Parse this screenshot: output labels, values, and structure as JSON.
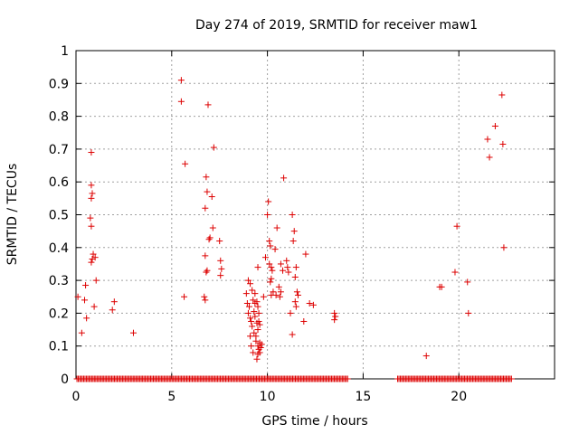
{
  "chart_data": {
    "type": "scatter",
    "title": "Day 274 of 2019, SRMTID for receiver maw1",
    "xlabel": "GPS time / hours",
    "ylabel": "SRMTID / TECUs",
    "xlim": [
      0,
      25
    ],
    "ylim": [
      0,
      1
    ],
    "xticks": [
      0,
      5,
      10,
      15,
      20
    ],
    "xtick_labels": [
      "0",
      "5",
      "10",
      "15",
      "20"
    ],
    "yticks": [
      0,
      0.1,
      0.2,
      0.3,
      0.4,
      0.5,
      0.6,
      0.7,
      0.8,
      0.9,
      1
    ],
    "ytick_labels": [
      "0",
      "0.1",
      "0.2",
      "0.3",
      "0.4",
      "0.5",
      "0.6",
      "0.7",
      "0.8",
      "0.9",
      "1"
    ],
    "grid": true,
    "marker": "+",
    "color": "#dd0000",
    "baseline_zero_ranges": [
      [
        0.05,
        14.2
      ],
      [
        16.8,
        22.8
      ]
    ],
    "series": [
      {
        "name": "SRMTID",
        "points": [
          [
            0.1,
            0.25
          ],
          [
            0.3,
            0.14
          ],
          [
            0.45,
            0.24
          ],
          [
            0.5,
            0.285
          ],
          [
            0.55,
            0.185
          ],
          [
            0.8,
            0.69
          ],
          [
            0.8,
            0.59
          ],
          [
            0.85,
            0.565
          ],
          [
            0.8,
            0.55
          ],
          [
            0.75,
            0.49
          ],
          [
            0.8,
            0.465
          ],
          [
            0.9,
            0.38
          ],
          [
            0.85,
            0.365
          ],
          [
            0.8,
            0.355
          ],
          [
            1.0,
            0.37
          ],
          [
            1.05,
            0.3
          ],
          [
            0.95,
            0.22
          ],
          [
            1.9,
            0.21
          ],
          [
            2.0,
            0.235
          ],
          [
            3.0,
            0.14
          ],
          [
            5.5,
            0.91
          ],
          [
            5.5,
            0.845
          ],
          [
            5.7,
            0.655
          ],
          [
            5.65,
            0.25
          ],
          [
            6.8,
            0.615
          ],
          [
            6.85,
            0.57
          ],
          [
            6.9,
            0.835
          ],
          [
            6.75,
            0.52
          ],
          [
            7.0,
            0.43
          ],
          [
            6.95,
            0.425
          ],
          [
            7.1,
            0.555
          ],
          [
            7.15,
            0.46
          ],
          [
            7.2,
            0.705
          ],
          [
            6.75,
            0.375
          ],
          [
            6.85,
            0.33
          ],
          [
            6.8,
            0.325
          ],
          [
            6.7,
            0.25
          ],
          [
            6.75,
            0.24
          ],
          [
            7.5,
            0.42
          ],
          [
            7.55,
            0.36
          ],
          [
            7.6,
            0.335
          ],
          [
            7.55,
            0.315
          ],
          [
            8.9,
            0.26
          ],
          [
            9.0,
            0.3
          ],
          [
            9.1,
            0.29
          ],
          [
            9.2,
            0.27
          ],
          [
            8.95,
            0.23
          ],
          [
            9.05,
            0.22
          ],
          [
            9.0,
            0.2
          ],
          [
            9.1,
            0.185
          ],
          [
            9.15,
            0.175
          ],
          [
            9.25,
            0.24
          ],
          [
            9.3,
            0.205
          ],
          [
            9.35,
            0.19
          ],
          [
            9.2,
            0.16
          ],
          [
            9.3,
            0.14
          ],
          [
            9.4,
            0.13
          ],
          [
            9.1,
            0.13
          ],
          [
            9.15,
            0.1
          ],
          [
            9.25,
            0.08
          ],
          [
            9.4,
            0.115
          ],
          [
            9.5,
            0.1
          ],
          [
            9.55,
            0.09
          ],
          [
            9.6,
            0.11
          ],
          [
            9.5,
            0.075
          ],
          [
            9.45,
            0.06
          ],
          [
            9.6,
            0.08
          ],
          [
            9.65,
            0.095
          ],
          [
            9.7,
            0.105
          ],
          [
            9.5,
            0.15
          ],
          [
            9.45,
            0.17
          ],
          [
            9.55,
            0.175
          ],
          [
            9.6,
            0.165
          ],
          [
            9.55,
            0.2
          ],
          [
            9.5,
            0.22
          ],
          [
            9.45,
            0.235
          ],
          [
            9.35,
            0.23
          ],
          [
            9.5,
            0.34
          ],
          [
            9.35,
            0.26
          ],
          [
            9.8,
            0.25
          ],
          [
            9.9,
            0.37
          ],
          [
            10.0,
            0.5
          ],
          [
            10.05,
            0.54
          ],
          [
            10.1,
            0.42
          ],
          [
            10.15,
            0.405
          ],
          [
            10.1,
            0.35
          ],
          [
            10.2,
            0.34
          ],
          [
            10.25,
            0.33
          ],
          [
            10.2,
            0.305
          ],
          [
            10.15,
            0.295
          ],
          [
            10.3,
            0.265
          ],
          [
            10.2,
            0.255
          ],
          [
            10.45,
            0.255
          ],
          [
            10.5,
            0.46
          ],
          [
            10.4,
            0.395
          ],
          [
            10.7,
            0.35
          ],
          [
            10.8,
            0.33
          ],
          [
            10.6,
            0.28
          ],
          [
            10.7,
            0.265
          ],
          [
            10.65,
            0.25
          ],
          [
            10.85,
            0.612
          ],
          [
            11.0,
            0.36
          ],
          [
            11.05,
            0.34
          ],
          [
            11.1,
            0.325
          ],
          [
            11.3,
            0.5
          ],
          [
            11.4,
            0.45
          ],
          [
            11.35,
            0.42
          ],
          [
            11.5,
            0.34
          ],
          [
            11.45,
            0.31
          ],
          [
            11.55,
            0.265
          ],
          [
            11.6,
            0.255
          ],
          [
            11.45,
            0.235
          ],
          [
            11.5,
            0.22
          ],
          [
            11.2,
            0.2
          ],
          [
            11.3,
            0.135
          ],
          [
            11.9,
            0.175
          ],
          [
            12.0,
            0.38
          ],
          [
            12.2,
            0.23
          ],
          [
            12.4,
            0.225
          ],
          [
            13.5,
            0.2
          ],
          [
            13.55,
            0.19
          ],
          [
            13.5,
            0.18
          ],
          [
            18.3,
            0.07
          ],
          [
            19.0,
            0.28
          ],
          [
            19.1,
            0.28
          ],
          [
            19.8,
            0.325
          ],
          [
            19.9,
            0.465
          ],
          [
            20.45,
            0.295
          ],
          [
            20.5,
            0.2
          ],
          [
            21.5,
            0.73
          ],
          [
            21.6,
            0.675
          ],
          [
            21.9,
            0.77
          ],
          [
            22.25,
            0.865
          ],
          [
            22.3,
            0.715
          ],
          [
            22.35,
            0.4
          ]
        ]
      }
    ]
  }
}
